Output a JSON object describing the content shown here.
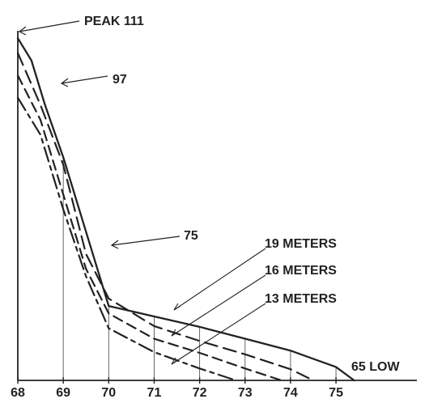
{
  "chart_data": {
    "type": "line",
    "x_ticks": [
      "68",
      "69",
      "70",
      "71",
      "72",
      "73",
      "74",
      "75"
    ],
    "xlim": [
      68,
      75.8
    ],
    "ylim": [
      65,
      112
    ],
    "grid": false,
    "series": [
      {
        "name": "",
        "style": "solid",
        "x": [
          68,
          68.3,
          68.6,
          69,
          69.5,
          70,
          71,
          72,
          73,
          74,
          75,
          75.4
        ],
        "y": [
          111,
          108,
          102,
          95,
          85,
          75,
          73.6,
          72.2,
          70.6,
          69,
          66.8,
          65
        ]
      },
      {
        "name": "19 METERS",
        "style": "long-dash",
        "x": [
          68,
          68.5,
          69,
          69.5,
          70,
          71,
          72,
          73,
          74,
          74.5
        ],
        "y": [
          109,
          102,
          94,
          82,
          76,
          72.3,
          70.3,
          68.5,
          66.5,
          65
        ]
      },
      {
        "name": "16 METERS",
        "style": "medium-dash",
        "x": [
          68,
          68.5,
          69,
          69.5,
          70,
          71,
          72,
          73,
          73.8
        ],
        "y": [
          106,
          100,
          90,
          80,
          74,
          70.6,
          68.7,
          66.6,
          65
        ]
      },
      {
        "name": "13 METERS",
        "style": "dash-dot",
        "x": [
          68,
          68.5,
          69,
          69.5,
          70,
          71,
          72,
          72.8
        ],
        "y": [
          103,
          98,
          88,
          79,
          72,
          68.8,
          66.6,
          65
        ]
      }
    ],
    "annotations": [
      "PEAK 111",
      "97",
      "75",
      "19 METERS",
      "16 METERS",
      "13 METERS",
      "65 LOW"
    ],
    "colors": {
      "line": "#222222",
      "background": "#ffffff"
    }
  }
}
